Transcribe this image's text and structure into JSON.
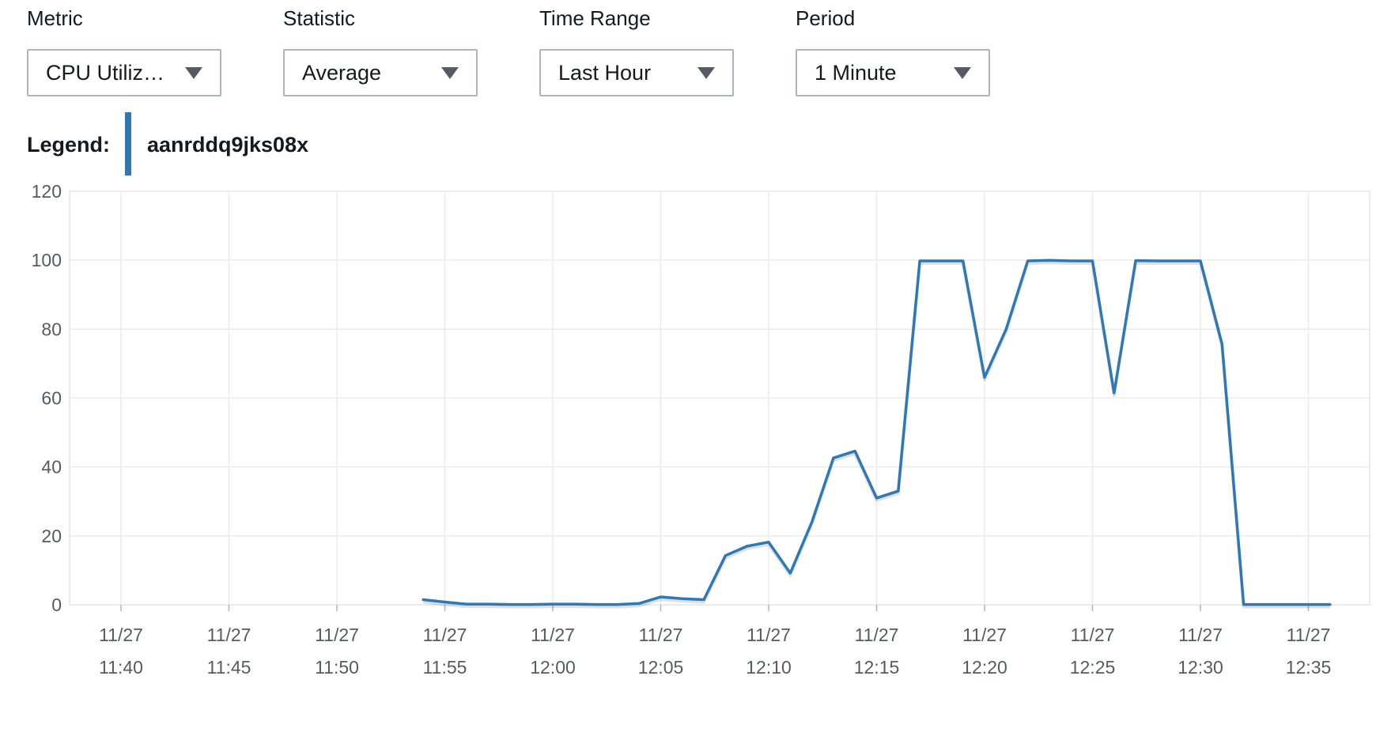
{
  "controls": {
    "metric": {
      "label": "Metric",
      "value": "CPU Utiliz…"
    },
    "statistic": {
      "label": "Statistic",
      "value": "Average"
    },
    "time_range": {
      "label": "Time Range",
      "value": "Last Hour"
    },
    "period": {
      "label": "Period",
      "value": "1 Minute"
    }
  },
  "legend": {
    "title": "Legend:"
  },
  "colors": {
    "series": "#2e78b5",
    "grid": "#e9ebed",
    "axis_text": "#545b64"
  },
  "icons": {
    "dropdown": "caret-down-icon"
  },
  "chart_data": {
    "type": "line",
    "title": "",
    "xlabel": "",
    "ylabel": "",
    "ylim": [
      0,
      120
    ],
    "y_ticks": [
      "0",
      "20",
      "40",
      "60",
      "80",
      "100",
      "120"
    ],
    "x_ticks": [
      {
        "date": "11/27",
        "time": "11:40"
      },
      {
        "date": "11/27",
        "time": "11:45"
      },
      {
        "date": "11/27",
        "time": "11:50"
      },
      {
        "date": "11/27",
        "time": "11:55"
      },
      {
        "date": "11/27",
        "time": "12:00"
      },
      {
        "date": "11/27",
        "time": "12:05"
      },
      {
        "date": "11/27",
        "time": "12:10"
      },
      {
        "date": "11/27",
        "time": "12:15"
      },
      {
        "date": "11/27",
        "time": "12:20"
      },
      {
        "date": "11/27",
        "time": "12:25"
      },
      {
        "date": "11/27",
        "time": "12:30"
      },
      {
        "date": "11/27",
        "time": "12:35"
      }
    ],
    "grid": true,
    "series": [
      {
        "name": "aanrddq9jks08x",
        "x": [
          "11:54",
          "11:55",
          "11:56",
          "11:57",
          "11:58",
          "11:59",
          "12:00",
          "12:01",
          "12:02",
          "12:03",
          "12:04",
          "12:05",
          "12:06",
          "12:07",
          "12:08",
          "12:09",
          "12:10",
          "12:11",
          "12:12",
          "12:13",
          "12:14",
          "12:15",
          "12:16",
          "12:17",
          "12:18",
          "12:19",
          "12:20",
          "12:21",
          "12:22",
          "12:23",
          "12:24",
          "12:25",
          "12:26",
          "12:27",
          "12:28",
          "12:29",
          "12:30",
          "12:31",
          "12:32",
          "12:33",
          "12:34",
          "12:35",
          "12:36"
        ],
        "values": [
          1.5,
          0.8,
          0.2,
          0.2,
          0.1,
          0.1,
          0.2,
          0.2,
          0.1,
          0.1,
          0.4,
          2.3,
          1.8,
          1.5,
          14.3,
          17.0,
          18.2,
          9.2,
          24.0,
          42.6,
          44.6,
          31.0,
          33.0,
          99.8,
          99.8,
          99.8,
          66.0,
          80.0,
          99.8,
          100.0,
          99.8,
          99.8,
          61.5,
          99.9,
          99.8,
          99.8,
          99.8,
          75.7,
          0.1,
          0.1,
          0.1,
          0.1,
          0.1
        ]
      }
    ]
  }
}
